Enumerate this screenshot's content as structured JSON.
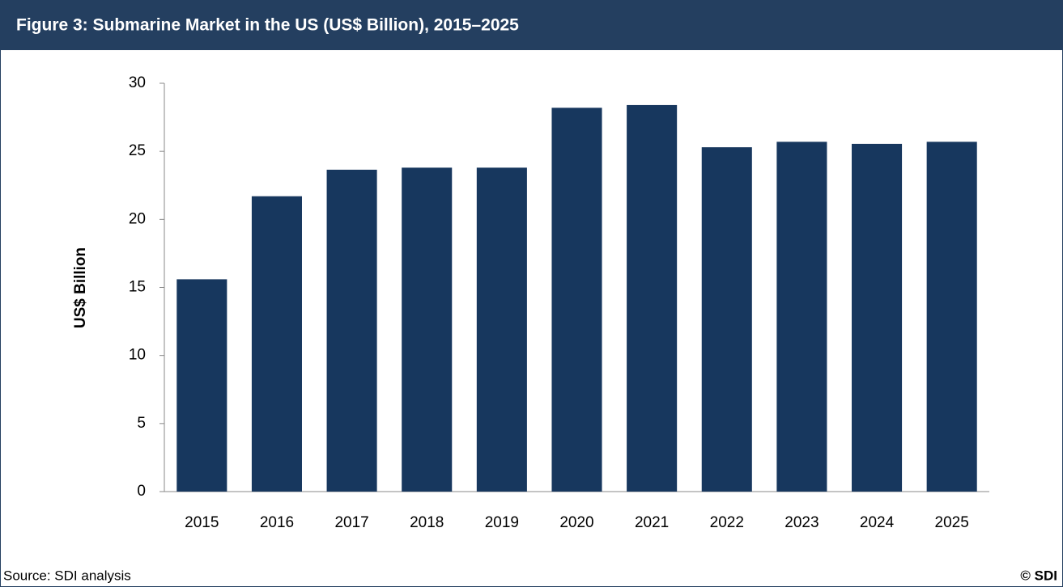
{
  "chart_data": {
    "type": "bar",
    "title": "Figure 3: Submarine   Market in the US (US$ Billion), 2015–2025",
    "y_label": "US$ Billion",
    "categories": [
      "2015",
      "2016",
      "2017",
      "2018",
      "2019",
      "2020",
      "2021",
      "2022",
      "2023",
      "2024",
      "2025"
    ],
    "values": [
      15.6,
      21.7,
      23.65,
      23.8,
      23.8,
      28.2,
      28.4,
      25.3,
      25.7,
      25.55,
      25.7
    ],
    "color": "#17375e",
    "ylim": [
      0,
      30
    ],
    "yticks": [
      0,
      5,
      10,
      15,
      20,
      25,
      30
    ],
    "grid": false,
    "source": "Source: SDI analysis",
    "copyright": "© SDI"
  }
}
